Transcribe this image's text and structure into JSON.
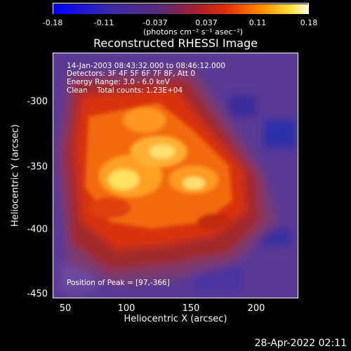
{
  "colorbar": {
    "ticks": [
      "-0.18",
      "-0.11",
      "-0.037",
      "0.037",
      "0.11",
      "0.18"
    ],
    "units": "(photons cm⁻² s⁻¹ asec⁻²)"
  },
  "title": "Reconstructed RHESSI Image",
  "info": {
    "time": "14-Jan-2003 08:43:32.000 to 08:46:12.000",
    "detectors": "Detectors: 3F 4F 5F 6F 7F 8F, Att 0",
    "energy": "Energy Range: 3.0 - 6.0 keV",
    "clean": "Clean    Total counts: 1.23E+04",
    "peak": "Position of Peak = [97,-366]"
  },
  "axes": {
    "xlabel": "Heliocentric X (arcsec)",
    "ylabel": "Heliocentric Y (arcsec)",
    "xticks": [
      "50",
      "100",
      "150",
      "200"
    ],
    "yticks": [
      "-300",
      "-350",
      "-400",
      "-450"
    ]
  },
  "datestamp": "28-Apr-2022 02:11"
}
